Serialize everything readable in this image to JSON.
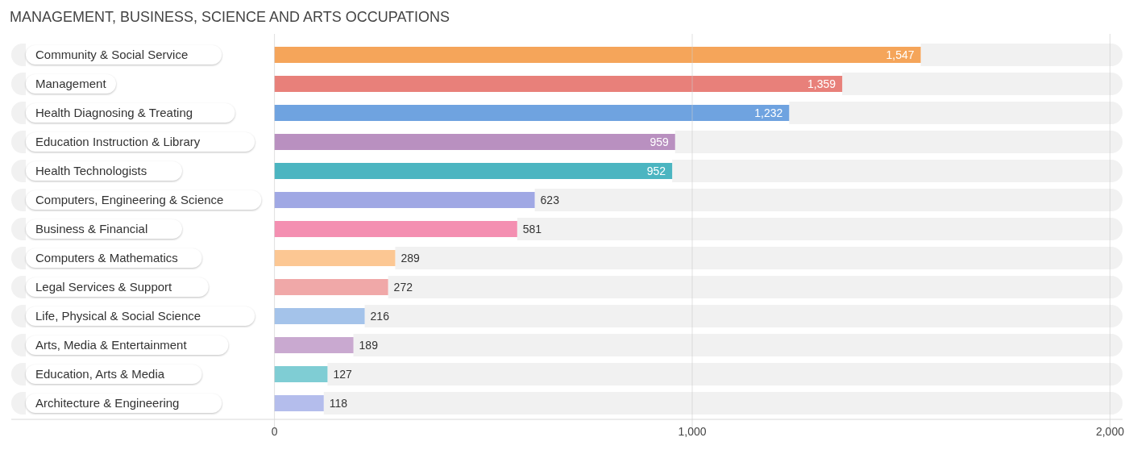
{
  "chart_data": {
    "type": "bar",
    "orientation": "horizontal",
    "title": "MANAGEMENT, BUSINESS, SCIENCE AND ARTS OCCUPATIONS",
    "categories": [
      "Community & Social Service",
      "Management",
      "Health Diagnosing & Treating",
      "Education Instruction & Library",
      "Health Technologists",
      "Computers, Engineering & Science",
      "Business & Financial",
      "Computers & Mathematics",
      "Legal Services & Support",
      "Life, Physical & Social Science",
      "Arts, Media & Entertainment",
      "Education, Arts & Media",
      "Architecture & Engineering"
    ],
    "values": [
      1547,
      1359,
      1232,
      959,
      952,
      623,
      581,
      289,
      272,
      216,
      189,
      127,
      118
    ],
    "colors": [
      "#f5a55a",
      "#e8807a",
      "#6fa3e0",
      "#b990c0",
      "#4bb5c1",
      "#a0a8e4",
      "#f48fb1",
      "#fcc793",
      "#f0a8a8",
      "#a4c3ea",
      "#c9a9d0",
      "#7fcdd4",
      "#b4bdec"
    ],
    "xlim": [
      -630,
      2030
    ],
    "xticks": [
      0,
      {
        "value": 1000,
        "label": "1,000"
      },
      {
        "value": 2000,
        "label": "2,000"
      }
    ],
    "value_labels": [
      "1,547",
      "1,359",
      "1,232",
      "959",
      "952",
      "623",
      "581",
      "289",
      "272",
      "216",
      "189",
      "127",
      "118"
    ],
    "grid": "x",
    "data_labels": true
  }
}
